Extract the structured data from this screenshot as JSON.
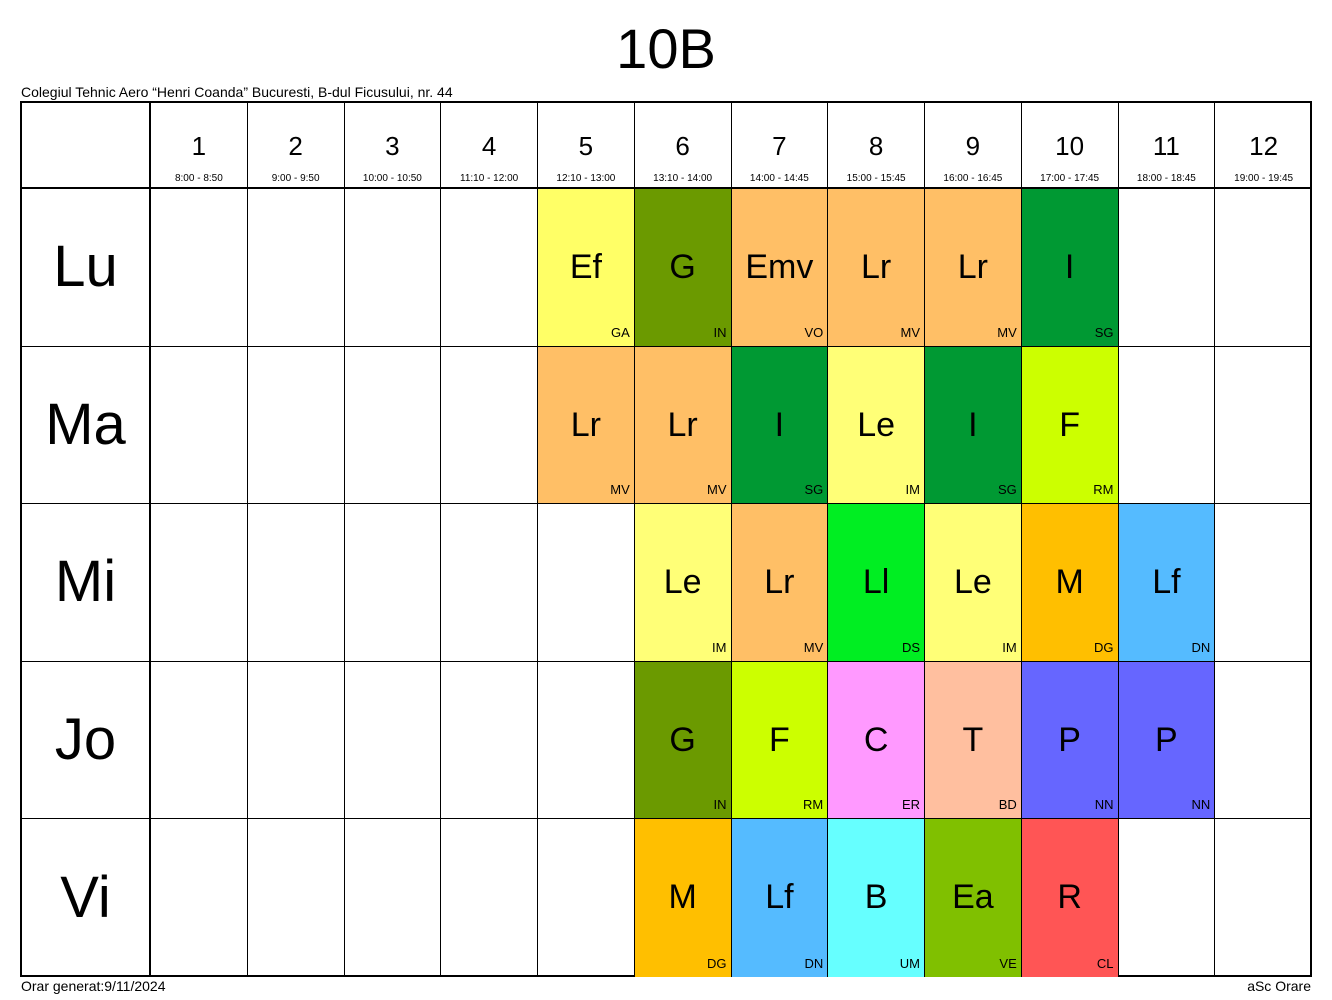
{
  "title": "10B",
  "school": "Colegiul Tehnic Aero “Henri Coanda” Bucuresti, B-dul Ficusului, nr. 44",
  "footer_left": "Orar generat:9/11/2024",
  "footer_right": "aSc Orare",
  "periods": [
    {
      "num": "1",
      "time": "8:00 - 8:50"
    },
    {
      "num": "2",
      "time": "9:00 - 9:50"
    },
    {
      "num": "3",
      "time": "10:00 - 10:50"
    },
    {
      "num": "4",
      "time": "11:10 - 12:00"
    },
    {
      "num": "5",
      "time": "12:10 - 13:00"
    },
    {
      "num": "6",
      "time": "13:10 - 14:00"
    },
    {
      "num": "7",
      "time": "14:00 - 14:45"
    },
    {
      "num": "8",
      "time": "15:00 - 15:45"
    },
    {
      "num": "9",
      "time": "16:00 - 16:45"
    },
    {
      "num": "10",
      "time": "17:00 - 17:45"
    },
    {
      "num": "11",
      "time": "18:00 - 18:45"
    },
    {
      "num": "12",
      "time": "19:00 - 19:45"
    }
  ],
  "days": [
    {
      "label": "Lu",
      "lessons": [
        null,
        null,
        null,
        null,
        {
          "subject": "Ef",
          "teacher": "GA",
          "color": "#ffff66"
        },
        {
          "subject": "G",
          "teacher": "IN",
          "color": "#6b9a00"
        },
        {
          "subject": "Emv",
          "teacher": "VO",
          "color": "#ffbf66"
        },
        {
          "subject": "Lr",
          "teacher": "MV",
          "color": "#ffbf66"
        },
        {
          "subject": "Lr",
          "teacher": "MV",
          "color": "#ffbf66"
        },
        {
          "subject": "I",
          "teacher": "SG",
          "color": "#009933"
        },
        null,
        null
      ]
    },
    {
      "label": "Ma",
      "lessons": [
        null,
        null,
        null,
        null,
        {
          "subject": "Lr",
          "teacher": "MV",
          "color": "#ffbf66"
        },
        {
          "subject": "Lr",
          "teacher": "MV",
          "color": "#ffbf66"
        },
        {
          "subject": "I",
          "teacher": "SG",
          "color": "#009933"
        },
        {
          "subject": "Le",
          "teacher": "IM",
          "color": "#ffff77"
        },
        {
          "subject": "I",
          "teacher": "SG",
          "color": "#009933"
        },
        {
          "subject": "F",
          "teacher": "RM",
          "color": "#ccff00"
        },
        null,
        null
      ]
    },
    {
      "label": "Mi",
      "lessons": [
        null,
        null,
        null,
        null,
        null,
        {
          "subject": "Le",
          "teacher": "IM",
          "color": "#ffff77"
        },
        {
          "subject": "Lr",
          "teacher": "MV",
          "color": "#ffbf66"
        },
        {
          "subject": "Ll",
          "teacher": "DS",
          "color": "#00ee22"
        },
        {
          "subject": "Le",
          "teacher": "IM",
          "color": "#ffff77"
        },
        {
          "subject": "M",
          "teacher": "DG",
          "color": "#ffbf00"
        },
        {
          "subject": "Lf",
          "teacher": "DN",
          "color": "#55bbff"
        },
        null
      ]
    },
    {
      "label": "Jo",
      "lessons": [
        null,
        null,
        null,
        null,
        null,
        {
          "subject": "G",
          "teacher": "IN",
          "color": "#6b9a00"
        },
        {
          "subject": "F",
          "teacher": "RM",
          "color": "#ccff00"
        },
        {
          "subject": "C",
          "teacher": "ER",
          "color": "#ff99ff"
        },
        {
          "subject": "T",
          "teacher": "BD",
          "color": "#ffbf9f"
        },
        {
          "subject": "P",
          "teacher": "NN",
          "color": "#6666ff"
        },
        {
          "subject": "P",
          "teacher": "NN",
          "color": "#6666ff"
        },
        null
      ]
    },
    {
      "label": "Vi",
      "lessons": [
        null,
        null,
        null,
        null,
        null,
        {
          "subject": "M",
          "teacher": "DG",
          "color": "#ffbf00"
        },
        {
          "subject": "Lf",
          "teacher": "DN",
          "color": "#55bbff"
        },
        {
          "subject": "B",
          "teacher": "UM",
          "color": "#66ffff"
        },
        {
          "subject": "Ea",
          "teacher": "VE",
          "color": "#80c000"
        },
        {
          "subject": "R",
          "teacher": "CL",
          "color": "#ff5555"
        },
        null,
        null
      ]
    }
  ]
}
